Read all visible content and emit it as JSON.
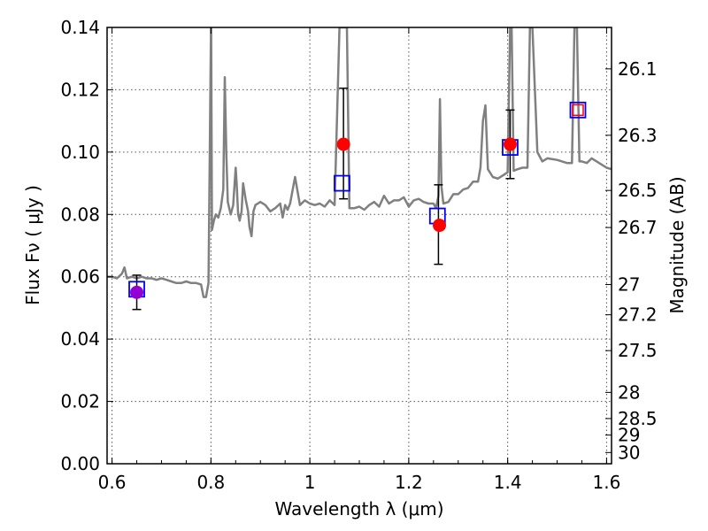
{
  "chart_data": {
    "type": "scatter",
    "title": "",
    "xlabel": "Wavelength  λ (μm)",
    "ylabel": "Flux  Fν  ( μJy )",
    "ylabel_right": "Magnitude (AB)",
    "xlim": [
      0.59,
      1.61
    ],
    "ylim": [
      0.0,
      0.14
    ],
    "grid": true,
    "x_ticks": [
      0.6,
      0.8,
      1.0,
      1.2,
      1.4,
      1.6
    ],
    "x_tick_labels": [
      "0.6",
      "0.8",
      "1",
      "1.2",
      "1.4",
      "1.6"
    ],
    "y_ticks": [
      0.0,
      0.02,
      0.04,
      0.06,
      0.08,
      0.1,
      0.12,
      0.14
    ],
    "y_tick_labels": [
      "0.00",
      "0.02",
      "0.04",
      "0.06",
      "0.08",
      "0.10",
      "0.12",
      "0.14"
    ],
    "right_ticks": [
      {
        "flux": 0.1267,
        "label": "26.1"
      },
      {
        "flux": 0.1054,
        "label": "26.3"
      },
      {
        "flux": 0.0877,
        "label": "26.5"
      },
      {
        "flux": 0.0758,
        "label": "26.7"
      },
      {
        "flux": 0.0575,
        "label": "27"
      },
      {
        "flux": 0.0478,
        "label": "27.2"
      },
      {
        "flux": 0.0363,
        "label": "27.5"
      },
      {
        "flux": 0.0229,
        "label": "28"
      },
      {
        "flux": 0.0145,
        "label": "28.5"
      },
      {
        "flux": 0.0092,
        "label": "29"
      },
      {
        "flux": 0.0036,
        "label": "30"
      }
    ],
    "colors": {
      "model": "#808080",
      "observed": "#ff0000",
      "synthetic": "#0000ff",
      "highlight": "#9400d3",
      "errorbar": "#000000",
      "grid": "#555555"
    },
    "series": [
      {
        "style": "model-spectrum",
        "x": [
          0.59,
          0.6,
          0.61,
          0.62,
          0.625,
          0.63,
          0.64,
          0.65,
          0.66,
          0.67,
          0.68,
          0.69,
          0.7,
          0.71,
          0.72,
          0.73,
          0.74,
          0.75,
          0.76,
          0.77,
          0.78,
          0.785,
          0.79,
          0.795,
          0.8,
          0.8005,
          0.802,
          0.806,
          0.81,
          0.815,
          0.82,
          0.825,
          0.828,
          0.831,
          0.834,
          0.837,
          0.84,
          0.845,
          0.85,
          0.852,
          0.855,
          0.858,
          0.862,
          0.865,
          0.87,
          0.875,
          0.878,
          0.882,
          0.886,
          0.89,
          0.9,
          0.91,
          0.92,
          0.93,
          0.94,
          0.945,
          0.95,
          0.955,
          0.96,
          0.97,
          0.98,
          0.99,
          1.0,
          1.01,
          1.02,
          1.03,
          1.04,
          1.05,
          1.06,
          1.068,
          1.07,
          1.075,
          1.08,
          1.085,
          1.09,
          1.1,
          1.11,
          1.12,
          1.13,
          1.14,
          1.15,
          1.16,
          1.17,
          1.18,
          1.19,
          1.2,
          1.21,
          1.22,
          1.23,
          1.24,
          1.25,
          1.255,
          1.26,
          1.263,
          1.266,
          1.27,
          1.28,
          1.29,
          1.3,
          1.31,
          1.32,
          1.33,
          1.34,
          1.345,
          1.35,
          1.355,
          1.36,
          1.37,
          1.38,
          1.39,
          1.4,
          1.405,
          1.408,
          1.412,
          1.42,
          1.43,
          1.44,
          1.445,
          1.45,
          1.46,
          1.47,
          1.48,
          1.5,
          1.52,
          1.53,
          1.535,
          1.54,
          1.545,
          1.55,
          1.56,
          1.57,
          1.58,
          1.6,
          1.61
        ],
        "y": [
          0.06,
          0.06,
          0.0595,
          0.061,
          0.063,
          0.0595,
          0.06,
          0.0595,
          0.06,
          0.0595,
          0.0595,
          0.059,
          0.0595,
          0.059,
          0.0585,
          0.058,
          0.058,
          0.0585,
          0.058,
          0.058,
          0.0575,
          0.0535,
          0.0535,
          0.058,
          0.14,
          0.14,
          0.075,
          0.078,
          0.08,
          0.079,
          0.082,
          0.088,
          0.124,
          0.1,
          0.084,
          0.082,
          0.08,
          0.083,
          0.095,
          0.09,
          0.08,
          0.078,
          0.081,
          0.09,
          0.085,
          0.081,
          0.076,
          0.073,
          0.081,
          0.083,
          0.084,
          0.083,
          0.081,
          0.082,
          0.0835,
          0.079,
          0.083,
          0.0815,
          0.0835,
          0.092,
          0.083,
          0.0845,
          0.0835,
          0.083,
          0.0835,
          0.0825,
          0.0845,
          0.083,
          0.14,
          0.14,
          0.14,
          0.14,
          0.082,
          0.082,
          0.082,
          0.0825,
          0.0815,
          0.083,
          0.084,
          0.0825,
          0.086,
          0.0835,
          0.0845,
          0.0845,
          0.0855,
          0.0825,
          0.0845,
          0.085,
          0.084,
          0.0835,
          0.0835,
          0.082,
          0.086,
          0.117,
          0.089,
          0.0835,
          0.084,
          0.0865,
          0.0865,
          0.088,
          0.0885,
          0.0905,
          0.0905,
          0.095,
          0.11,
          0.115,
          0.0945,
          0.092,
          0.0915,
          0.0925,
          0.0935,
          0.14,
          0.14,
          0.094,
          0.0945,
          0.095,
          0.095,
          0.14,
          0.14,
          0.1,
          0.097,
          0.098,
          0.0975,
          0.0965,
          0.0965,
          0.14,
          0.14,
          0.097,
          0.097,
          0.0965,
          0.098,
          0.097,
          0.095,
          0.0945
        ]
      },
      {
        "style": "errorbar",
        "x": [
          0.65,
          1.068,
          1.26,
          1.405
        ],
        "low": [
          0.0495,
          0.085,
          0.064,
          0.0915
        ],
        "high": [
          0.0605,
          0.1205,
          0.0895,
          0.1135
        ]
      },
      {
        "style": "filled-circle",
        "x": [
          0.65,
          1.068,
          1.262,
          1.405
        ],
        "y": [
          0.055,
          0.1025,
          0.0765,
          0.1025
        ]
      },
      {
        "style": "open-square",
        "x": [
          0.65,
          1.065,
          1.258,
          1.405,
          1.542
        ],
        "y": [
          0.056,
          0.09,
          0.0795,
          0.1015,
          0.1135
        ]
      },
      {
        "style": "small-red-square",
        "x": [
          1.542
        ],
        "y": [
          0.1135
        ]
      }
    ]
  }
}
